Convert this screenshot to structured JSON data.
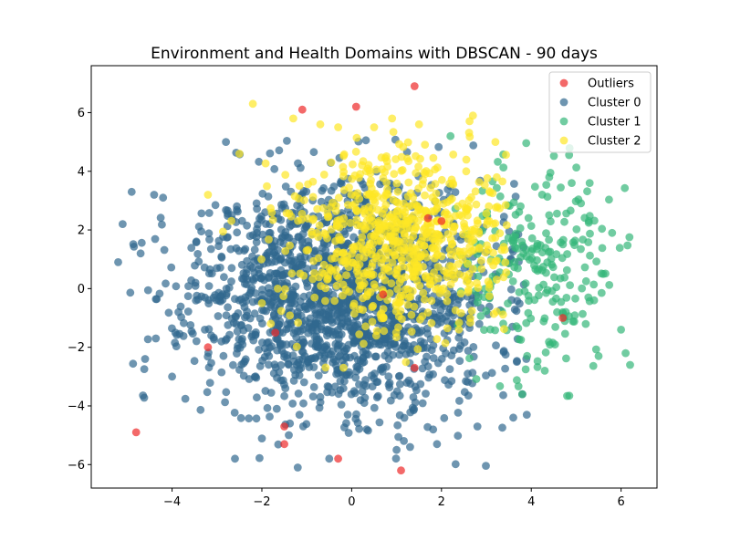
{
  "chart_data": {
    "type": "scatter",
    "title": "Environment and Health Domains with DBSCAN - 90 days",
    "xlabel": "",
    "ylabel": "",
    "xlim": [
      -5.8,
      6.8
    ],
    "ylim": [
      -6.8,
      7.6
    ],
    "xticks": [
      -4,
      -2,
      0,
      2,
      4,
      6
    ],
    "yticks": [
      -6,
      -4,
      -2,
      0,
      2,
      4,
      6
    ],
    "grid": false,
    "legend_position": "top-right",
    "series": [
      {
        "name": "Outliers",
        "color": "#ee2a2a",
        "points": [
          [
            -4.8,
            -4.9
          ],
          [
            -1.5,
            -4.7
          ],
          [
            -1.5,
            -5.3
          ],
          [
            -0.3,
            -5.8
          ],
          [
            1.1,
            -6.2
          ],
          [
            -1.1,
            6.1
          ],
          [
            0.1,
            6.2
          ],
          [
            1.4,
            6.9
          ],
          [
            1.4,
            -2.7
          ],
          [
            -3.2,
            -2.0
          ],
          [
            4.7,
            -1.0
          ],
          [
            2.0,
            2.3
          ],
          [
            1.7,
            2.4
          ],
          [
            -1.7,
            -1.5
          ],
          [
            0.7,
            -0.2
          ]
        ]
      },
      {
        "name": "Cluster 0",
        "color": "#31688e",
        "generator": {
          "count": 1750,
          "seed": 11,
          "cx": -0.2,
          "cy": -0.3,
          "sx": 1.65,
          "sy": 1.95,
          "xrange": [
            -5.3,
            3.9
          ],
          "yrange": [
            -6.1,
            5.1
          ]
        },
        "points": [
          [
            -5.2,
            0.9
          ],
          [
            -5.1,
            2.2
          ],
          [
            -4.9,
            3.3
          ],
          [
            -4.7,
            1.2
          ],
          [
            -4.6,
            -2.4
          ],
          [
            -4.4,
            3.2
          ],
          [
            -4.2,
            3.1
          ],
          [
            -4.0,
            -3.0
          ],
          [
            -2.8,
            5.0
          ],
          [
            -2.6,
            -5.8
          ],
          [
            -1.2,
            -6.1
          ],
          [
            -0.5,
            -5.8
          ],
          [
            1.0,
            -5.5
          ],
          [
            1.3,
            -5.4
          ],
          [
            1.9,
            -5.3
          ],
          [
            3.8,
            -3.6
          ],
          [
            3.6,
            -4.4
          ],
          [
            2.8,
            -4.7
          ],
          [
            3.9,
            -4.3
          ]
        ]
      },
      {
        "name": "Cluster 1",
        "color": "#35b779",
        "generator": {
          "count": 230,
          "seed": 23,
          "cx": 4.0,
          "cy": 0.6,
          "sx": 0.95,
          "sy": 1.9,
          "xrange": [
            2.3,
            6.2
          ],
          "yrange": [
            -3.8,
            5.2
          ]
        },
        "points": [
          [
            6.2,
            -2.6
          ],
          [
            6.1,
            -2.2
          ],
          [
            6.0,
            -1.4
          ],
          [
            5.8,
            1.9
          ],
          [
            5.5,
            -2.3
          ],
          [
            5.3,
            3.6
          ],
          [
            4.9,
            3.6
          ],
          [
            4.4,
            3.8
          ],
          [
            4.3,
            -2.8
          ],
          [
            3.8,
            -3.6
          ],
          [
            2.2,
            5.2
          ],
          [
            5.6,
            0.5
          ],
          [
            5.4,
            -0.4
          ]
        ]
      },
      {
        "name": "Cluster 2",
        "color": "#fde725",
        "generator": {
          "count": 720,
          "seed": 37,
          "cx": 1.2,
          "cy": 1.7,
          "sx": 1.25,
          "sy": 1.5,
          "xrange": [
            -3.3,
            3.5
          ],
          "yrange": [
            -3.4,
            6.4
          ]
        },
        "points": [
          [
            -2.2,
            6.3
          ],
          [
            -1.3,
            5.8
          ],
          [
            -0.7,
            5.6
          ],
          [
            -0.3,
            5.5
          ],
          [
            0.5,
            5.5
          ],
          [
            0.9,
            5.8
          ],
          [
            1.5,
            5.6
          ],
          [
            2.7,
            5.9
          ],
          [
            3.2,
            5.0
          ],
          [
            -3.2,
            3.2
          ],
          [
            -2.5,
            4.6
          ],
          [
            -2.0,
            -0.5
          ],
          [
            -1.8,
            -1.2
          ]
        ]
      }
    ]
  }
}
